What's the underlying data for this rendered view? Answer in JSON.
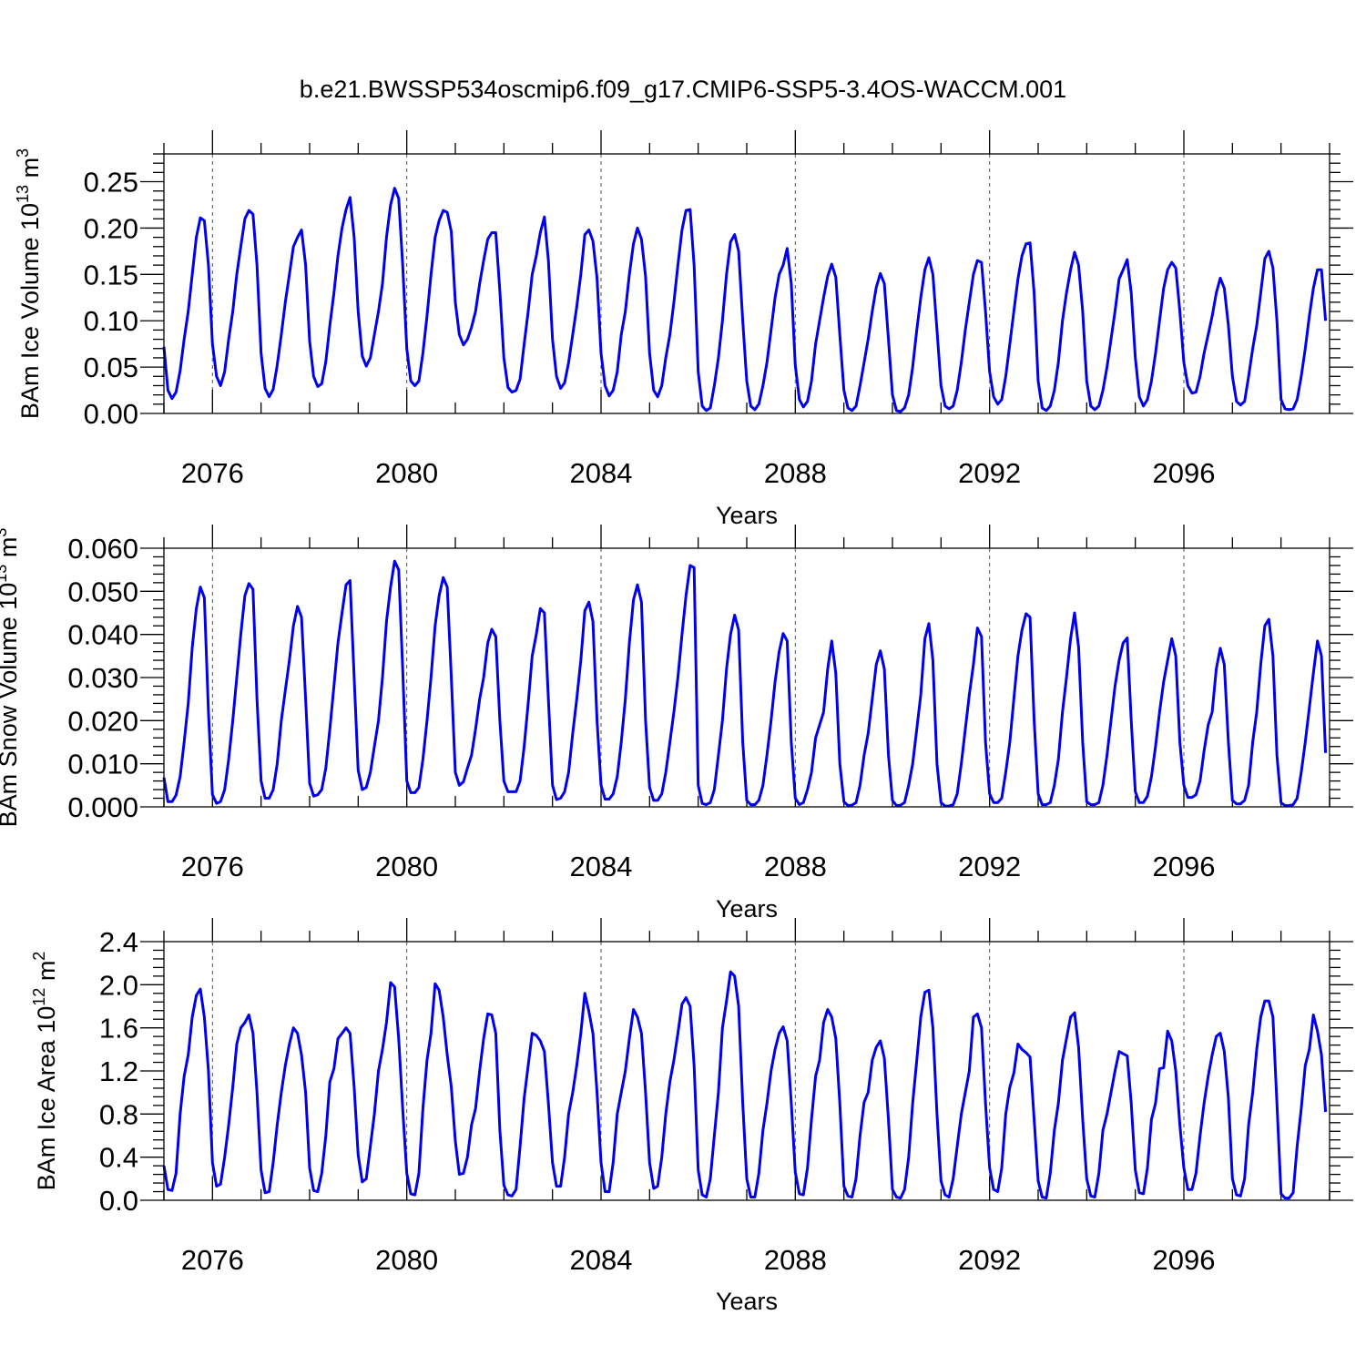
{
  "title": "b.e21.BWSSP534oscmip6.f09_g17.CMIP6-SSP5-3.4OS-WACCM.001",
  "chart_data": [
    {
      "type": "line",
      "ylabel": "BAm Ice Volume 10",
      "ylabel_sup": "13",
      "ylabel_unit": " m",
      "ylabel_unit_sup": "3",
      "xlabel": "Years",
      "xlim": [
        2075,
        2099
      ],
      "ylim": [
        0,
        0.28
      ],
      "yticks": [
        0,
        0.05,
        0.1,
        0.15,
        0.2,
        0.25
      ],
      "ytick_labels": [
        "0.00",
        "0.05",
        "0.10",
        "0.15",
        "0.20",
        "0.25"
      ],
      "xticks": [
        2076,
        2080,
        2084,
        2088,
        2092,
        2096
      ],
      "xtick_labels": [
        "2076",
        "2080",
        "2084",
        "2088",
        "2092",
        "2096"
      ],
      "grid": "dashed vertical lines at labeled years",
      "series_color": "#0000ee",
      "monthly_values": [
        [
          0.072,
          0.025,
          0.016,
          0.023,
          0.046,
          0.08,
          0.11,
          0.15,
          0.19,
          0.211,
          0.208,
          0.16
        ],
        [
          0.075,
          0.04,
          0.03,
          0.045,
          0.08,
          0.11,
          0.15,
          0.18,
          0.21,
          0.219,
          0.215,
          0.16
        ],
        [
          0.065,
          0.027,
          0.018,
          0.026,
          0.052,
          0.085,
          0.12,
          0.15,
          0.18,
          0.19,
          0.198,
          0.16
        ],
        [
          0.078,
          0.04,
          0.029,
          0.032,
          0.056,
          0.095,
          0.13,
          0.17,
          0.2,
          0.22,
          0.233,
          0.19
        ],
        [
          0.11,
          0.062,
          0.051,
          0.06,
          0.085,
          0.11,
          0.14,
          0.19,
          0.225,
          0.243,
          0.232,
          0.16
        ],
        [
          0.07,
          0.035,
          0.03,
          0.035,
          0.065,
          0.105,
          0.15,
          0.19,
          0.208,
          0.219,
          0.217,
          0.196
        ],
        [
          0.12,
          0.085,
          0.074,
          0.08,
          0.093,
          0.11,
          0.14,
          0.165,
          0.188,
          0.195,
          0.195,
          0.132
        ],
        [
          0.06,
          0.028,
          0.023,
          0.025,
          0.037,
          0.075,
          0.11,
          0.15,
          0.17,
          0.195,
          0.212,
          0.165
        ],
        [
          0.08,
          0.04,
          0.027,
          0.033,
          0.055,
          0.085,
          0.115,
          0.15,
          0.193,
          0.198,
          0.186,
          0.146
        ],
        [
          0.065,
          0.03,
          0.019,
          0.025,
          0.045,
          0.085,
          0.11,
          0.15,
          0.183,
          0.2,
          0.188,
          0.148
        ],
        [
          0.065,
          0.025,
          0.018,
          0.03,
          0.06,
          0.085,
          0.12,
          0.16,
          0.198,
          0.219,
          0.22,
          0.16
        ],
        [
          0.045,
          0.008,
          0.003,
          0.006,
          0.03,
          0.06,
          0.1,
          0.15,
          0.185,
          0.193,
          0.175,
          0.1
        ],
        [
          0.035,
          0.008,
          0.004,
          0.01,
          0.03,
          0.055,
          0.09,
          0.125,
          0.15,
          0.16,
          0.178,
          0.14
        ],
        [
          0.052,
          0.015,
          0.007,
          0.013,
          0.035,
          0.075,
          0.1,
          0.125,
          0.148,
          0.161,
          0.147,
          0.085
        ],
        [
          0.025,
          0.006,
          0.003,
          0.008,
          0.03,
          0.055,
          0.08,
          0.11,
          0.136,
          0.151,
          0.14,
          0.08
        ],
        [
          0.02,
          0.003,
          0.002,
          0.006,
          0.02,
          0.05,
          0.09,
          0.125,
          0.155,
          0.168,
          0.15,
          0.09
        ],
        [
          0.03,
          0.008,
          0.005,
          0.008,
          0.025,
          0.055,
          0.09,
          0.12,
          0.15,
          0.165,
          0.163,
          0.11
        ],
        [
          0.045,
          0.018,
          0.01,
          0.015,
          0.04,
          0.075,
          0.11,
          0.145,
          0.17,
          0.183,
          0.184,
          0.13
        ],
        [
          0.035,
          0.006,
          0.003,
          0.008,
          0.025,
          0.055,
          0.1,
          0.13,
          0.155,
          0.174,
          0.16,
          0.11
        ],
        [
          0.035,
          0.008,
          0.004,
          0.008,
          0.025,
          0.05,
          0.08,
          0.11,
          0.145,
          0.155,
          0.166,
          0.13
        ],
        [
          0.06,
          0.018,
          0.008,
          0.015,
          0.035,
          0.065,
          0.1,
          0.135,
          0.155,
          0.163,
          0.157,
          0.11
        ],
        [
          0.055,
          0.03,
          0.022,
          0.023,
          0.04,
          0.065,
          0.085,
          0.105,
          0.13,
          0.146,
          0.135,
          0.095
        ],
        [
          0.04,
          0.013,
          0.009,
          0.013,
          0.04,
          0.07,
          0.095,
          0.13,
          0.167,
          0.175,
          0.157,
          0.1
        ],
        [
          0.015,
          0.005,
          0.004,
          0.005,
          0.015,
          0.04,
          0.07,
          0.105,
          0.135,
          0.155,
          0.155,
          0.1
        ]
      ]
    },
    {
      "type": "line",
      "ylabel": "BAm Snow Volume 10",
      "ylabel_sup": "13",
      "ylabel_unit": " m",
      "ylabel_unit_sup": "3",
      "xlabel": "Years",
      "xlim": [
        2075,
        2099
      ],
      "ylim": [
        0,
        0.06
      ],
      "yticks": [
        0,
        0.01,
        0.02,
        0.03,
        0.04,
        0.05,
        0.06
      ],
      "ytick_labels": [
        "0.000",
        "0.010",
        "0.020",
        "0.030",
        "0.040",
        "0.050",
        "0.060"
      ],
      "xticks": [
        2076,
        2080,
        2084,
        2088,
        2092,
        2096
      ],
      "xtick_labels": [
        "2076",
        "2080",
        "2084",
        "2088",
        "2092",
        "2096"
      ],
      "grid": "dashed vertical lines at labeled years",
      "series_color": "#0000ee",
      "monthly_values": [
        [
          0.0068,
          0.0012,
          0.0012,
          0.0027,
          0.007,
          0.015,
          0.024,
          0.037,
          0.046,
          0.051,
          0.0485,
          0.022
        ],
        [
          0.0028,
          0.0008,
          0.0012,
          0.004,
          0.011,
          0.02,
          0.03,
          0.04,
          0.049,
          0.0518,
          0.0505,
          0.025
        ],
        [
          0.006,
          0.002,
          0.002,
          0.004,
          0.01,
          0.02,
          0.027,
          0.034,
          0.042,
          0.0465,
          0.044,
          0.025
        ],
        [
          0.0055,
          0.0025,
          0.0028,
          0.004,
          0.009,
          0.018,
          0.028,
          0.038,
          0.045,
          0.0515,
          0.0525,
          0.03
        ],
        [
          0.0085,
          0.004,
          0.0045,
          0.008,
          0.014,
          0.02,
          0.03,
          0.043,
          0.051,
          0.057,
          0.055,
          0.032
        ],
        [
          0.006,
          0.0033,
          0.0033,
          0.0045,
          0.011,
          0.02,
          0.03,
          0.042,
          0.049,
          0.0532,
          0.051,
          0.03
        ],
        [
          0.008,
          0.005,
          0.0058,
          0.009,
          0.012,
          0.018,
          0.025,
          0.03,
          0.038,
          0.0412,
          0.0395,
          0.02
        ],
        [
          0.006,
          0.0035,
          0.0035,
          0.0035,
          0.006,
          0.014,
          0.024,
          0.035,
          0.04,
          0.046,
          0.045,
          0.025
        ],
        [
          0.005,
          0.0017,
          0.002,
          0.0035,
          0.008,
          0.017,
          0.025,
          0.034,
          0.0455,
          0.0475,
          0.043,
          0.02
        ],
        [
          0.005,
          0.0018,
          0.0018,
          0.003,
          0.007,
          0.015,
          0.025,
          0.038,
          0.048,
          0.0515,
          0.0475,
          0.02
        ],
        [
          0.0045,
          0.0015,
          0.0015,
          0.003,
          0.008,
          0.015,
          0.022,
          0.03,
          0.04,
          0.049,
          0.056,
          0.0555
        ],
        [
          0.005,
          0.0008,
          0.0005,
          0.001,
          0.004,
          0.012,
          0.02,
          0.032,
          0.04,
          0.0445,
          0.041,
          0.015
        ],
        [
          0.0015,
          0.0005,
          0.0005,
          0.0015,
          0.005,
          0.012,
          0.02,
          0.029,
          0.036,
          0.0402,
          0.0385,
          0.015
        ],
        [
          0.002,
          0.0005,
          0.001,
          0.004,
          0.008,
          0.016,
          0.019,
          0.022,
          0.032,
          0.0385,
          0.031,
          0.01
        ],
        [
          0.0012,
          0.0003,
          0.0004,
          0.001,
          0.005,
          0.012,
          0.017,
          0.025,
          0.033,
          0.0362,
          0.032,
          0.012
        ],
        [
          0.0015,
          0.0003,
          0.0004,
          0.001,
          0.005,
          0.01,
          0.018,
          0.026,
          0.039,
          0.0425,
          0.034,
          0.01
        ],
        [
          0.001,
          0.0002,
          0.0002,
          0.0005,
          0.003,
          0.01,
          0.018,
          0.026,
          0.033,
          0.0415,
          0.0395,
          0.015
        ],
        [
          0.003,
          0.001,
          0.001,
          0.002,
          0.008,
          0.015,
          0.025,
          0.035,
          0.041,
          0.0448,
          0.044,
          0.02
        ],
        [
          0.003,
          0.0005,
          0.0005,
          0.001,
          0.005,
          0.011,
          0.022,
          0.03,
          0.039,
          0.045,
          0.037,
          0.015
        ],
        [
          0.0012,
          0.0005,
          0.0005,
          0.001,
          0.005,
          0.012,
          0.02,
          0.028,
          0.034,
          0.038,
          0.0392,
          0.02
        ],
        [
          0.0035,
          0.001,
          0.001,
          0.0025,
          0.007,
          0.014,
          0.022,
          0.029,
          0.034,
          0.039,
          0.035,
          0.015
        ],
        [
          0.005,
          0.0022,
          0.0022,
          0.0028,
          0.006,
          0.013,
          0.019,
          0.022,
          0.032,
          0.0368,
          0.033,
          0.015
        ],
        [
          0.0015,
          0.0007,
          0.0007,
          0.0015,
          0.005,
          0.015,
          0.022,
          0.033,
          0.042,
          0.0435,
          0.035,
          0.012
        ],
        [
          0.001,
          0.0003,
          0.0003,
          0.0005,
          0.002,
          0.008,
          0.015,
          0.023,
          0.031,
          0.0385,
          0.035,
          0.0125
        ]
      ]
    },
    {
      "type": "line",
      "ylabel": "BAm Ice Area 10",
      "ylabel_sup": "12",
      "ylabel_unit": " m",
      "ylabel_unit_sup": "2",
      "xlabel": "Years",
      "xlim": [
        2075,
        2099
      ],
      "ylim": [
        0,
        2.4
      ],
      "yticks": [
        0,
        0.4,
        0.8,
        1.2,
        1.6,
        2.0,
        2.4
      ],
      "ytick_labels": [
        "0.0",
        "0.4",
        "0.8",
        "1.2",
        "1.6",
        "2.0",
        "2.4"
      ],
      "xticks": [
        2076,
        2080,
        2084,
        2088,
        2092,
        2096
      ],
      "xtick_labels": [
        "2076",
        "2080",
        "2084",
        "2088",
        "2092",
        "2096"
      ],
      "grid": "dashed vertical lines at labeled years",
      "series_color": "#0000ee",
      "monthly_values": [
        [
          0.32,
          0.1,
          0.09,
          0.25,
          0.8,
          1.15,
          1.35,
          1.7,
          1.9,
          1.96,
          1.7,
          1.2
        ],
        [
          0.35,
          0.13,
          0.15,
          0.4,
          0.7,
          1.05,
          1.45,
          1.6,
          1.65,
          1.72,
          1.55,
          1.0
        ],
        [
          0.28,
          0.07,
          0.08,
          0.35,
          0.7,
          1.0,
          1.25,
          1.45,
          1.6,
          1.55,
          1.35,
          1.0
        ],
        [
          0.3,
          0.09,
          0.08,
          0.25,
          0.6,
          1.1,
          1.22,
          1.5,
          1.55,
          1.6,
          1.55,
          1.05
        ],
        [
          0.42,
          0.17,
          0.2,
          0.5,
          0.8,
          1.2,
          1.4,
          1.65,
          2.02,
          1.98,
          1.5,
          0.85
        ],
        [
          0.25,
          0.06,
          0.05,
          0.25,
          0.85,
          1.3,
          1.55,
          2.01,
          1.95,
          1.7,
          1.35,
          1.05
        ],
        [
          0.55,
          0.24,
          0.25,
          0.4,
          0.7,
          0.85,
          1.2,
          1.5,
          1.73,
          1.72,
          1.55,
          0.65
        ],
        [
          0.14,
          0.05,
          0.04,
          0.1,
          0.5,
          0.95,
          1.25,
          1.55,
          1.53,
          1.48,
          1.38,
          0.9
        ],
        [
          0.35,
          0.13,
          0.13,
          0.4,
          0.8,
          1.0,
          1.25,
          1.55,
          1.92,
          1.75,
          1.55,
          1.0
        ],
        [
          0.35,
          0.08,
          0.08,
          0.35,
          0.8,
          1.0,
          1.2,
          1.5,
          1.77,
          1.7,
          1.55,
          1.0
        ],
        [
          0.35,
          0.11,
          0.13,
          0.4,
          0.8,
          1.1,
          1.3,
          1.55,
          1.82,
          1.88,
          1.8,
          1.25
        ],
        [
          0.28,
          0.05,
          0.03,
          0.2,
          0.6,
          1.0,
          1.6,
          1.85,
          2.12,
          2.08,
          1.8,
          0.9
        ],
        [
          0.2,
          0.03,
          0.03,
          0.25,
          0.65,
          0.9,
          1.2,
          1.4,
          1.55,
          1.61,
          1.48,
          0.9
        ],
        [
          0.26,
          0.06,
          0.05,
          0.3,
          0.75,
          1.15,
          1.3,
          1.65,
          1.77,
          1.7,
          1.5,
          0.9
        ],
        [
          0.13,
          0.04,
          0.03,
          0.2,
          0.6,
          0.91,
          1.0,
          1.3,
          1.42,
          1.48,
          1.32,
          0.75
        ],
        [
          0.1,
          0.03,
          0.02,
          0.1,
          0.4,
          0.9,
          1.3,
          1.7,
          1.93,
          1.95,
          1.6,
          0.8
        ],
        [
          0.18,
          0.05,
          0.03,
          0.2,
          0.5,
          0.8,
          1.0,
          1.2,
          1.7,
          1.73,
          1.6,
          0.9
        ],
        [
          0.3,
          0.1,
          0.08,
          0.3,
          0.8,
          1.05,
          1.18,
          1.45,
          1.4,
          1.37,
          1.33,
          0.75
        ],
        [
          0.18,
          0.03,
          0.02,
          0.25,
          0.65,
          0.9,
          1.3,
          1.5,
          1.7,
          1.74,
          1.42,
          0.75
        ],
        [
          0.2,
          0.04,
          0.03,
          0.25,
          0.65,
          0.8,
          1.0,
          1.2,
          1.38,
          1.36,
          1.34,
          0.9
        ],
        [
          0.28,
          0.07,
          0.06,
          0.3,
          0.75,
          0.9,
          1.22,
          1.23,
          1.57,
          1.48,
          1.2,
          0.7
        ],
        [
          0.3,
          0.1,
          0.1,
          0.25,
          0.6,
          0.9,
          1.15,
          1.35,
          1.52,
          1.55,
          1.38,
          0.95
        ],
        [
          0.2,
          0.05,
          0.04,
          0.2,
          0.7,
          1.0,
          1.4,
          1.7,
          1.85,
          1.85,
          1.7,
          0.9
        ],
        [
          0.06,
          0.02,
          0.02,
          0.07,
          0.5,
          0.85,
          1.25,
          1.4,
          1.72,
          1.57,
          1.35,
          0.82
        ]
      ]
    }
  ]
}
